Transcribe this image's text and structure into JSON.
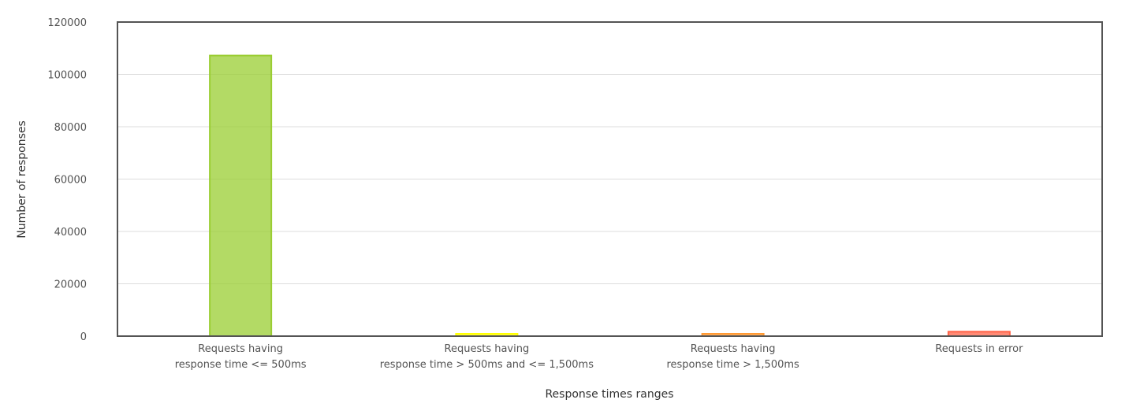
{
  "chart_data": {
    "type": "bar",
    "title": "",
    "xlabel": "Response times ranges",
    "ylabel": "Number of responses",
    "ylim": [
      0,
      120000
    ],
    "yticks": [
      0,
      20000,
      40000,
      60000,
      80000,
      100000,
      120000
    ],
    "grid": true,
    "categories": [
      [
        "Requests having",
        "response time <= 500ms"
      ],
      [
        "Requests having",
        "response time > 500ms and <= 1,500ms"
      ],
      [
        "Requests having",
        "response time > 1,500ms"
      ],
      [
        "Requests in error"
      ]
    ],
    "values": [
      107200,
      900,
      600,
      1700
    ],
    "colors": [
      "#9ACD32",
      "#FFFF00",
      "#FF9933",
      "#FF6347"
    ]
  }
}
